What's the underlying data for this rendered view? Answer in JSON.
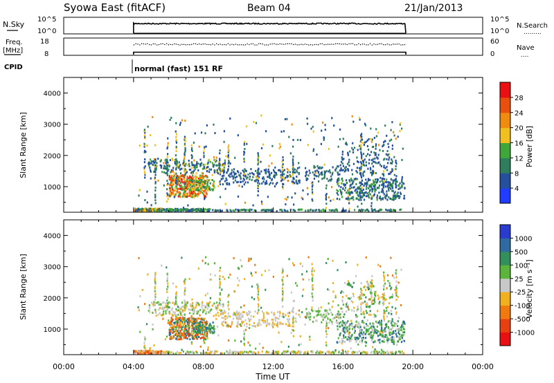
{
  "header": {
    "title": "Syowa East (fitACF)",
    "beam": "Beam 04",
    "date": "21/Jan/2013"
  },
  "top_panels": {
    "nsky": {
      "label": "N.Sky",
      "left_ticks": [
        "10^5",
        "10^0"
      ],
      "right_ticks": [
        "10^5",
        "10^0"
      ],
      "right_label": "N.Search",
      "right_marker": ".........",
      "level_top": 0.62,
      "level_bottom": 0.0
    },
    "freq": {
      "label_line1": "Freq.",
      "label_line2": "[MHz]",
      "left_ticks": [
        "18",
        "8"
      ],
      "right_ticks": [
        "60",
        "0"
      ],
      "right_label": "Nave",
      "right_marker": "....",
      "freq_level": 0.18,
      "nave_level": 0.66
    },
    "cpid": {
      "label": "CPID",
      "text": "normal (fast) 151 RF"
    }
  },
  "chart_data": [
    {
      "type": "heatmap",
      "name": "power",
      "ylabel": "Slant Range [km]",
      "ylim": [
        180,
        4500
      ],
      "yticks": [
        "1000",
        "2000",
        "3000",
        "4000"
      ],
      "ytick_values": [
        1000,
        2000,
        3000,
        4000
      ],
      "xlim": [
        0,
        24
      ],
      "colorbar": {
        "label": "Power [dB]",
        "ticks": [
          "4",
          "8",
          "12",
          "16",
          "20",
          "24",
          "28"
        ],
        "colors": [
          "#1f3cff",
          "#25509e",
          "#2e7d5c",
          "#3fa63a",
          "#f0c020",
          "#f08a10",
          "#e85010",
          "#e81010"
        ]
      },
      "data_window_hours": [
        4.0,
        19.6
      ]
    },
    {
      "type": "heatmap",
      "name": "velocity",
      "ylabel": "Slant Range [km]",
      "ylim": [
        180,
        4500
      ],
      "yticks": [
        "1000",
        "2000",
        "3000",
        "4000"
      ],
      "ytick_values": [
        1000,
        2000,
        3000,
        4000
      ],
      "xlim": [
        0,
        24
      ],
      "colorbar": {
        "label": "Velocity [m s⁻¹]",
        "ticks": [
          "1000",
          "500",
          "100",
          "25",
          "-25",
          "-100",
          "-500",
          "-1000"
        ],
        "colors": [
          "#2a3ccf",
          "#2f6aa0",
          "#34905a",
          "#5ab53a",
          "#c8c8c8",
          "#f0b020",
          "#f07a10",
          "#e84010",
          "#e81010"
        ]
      },
      "data_window_hours": [
        4.0,
        19.6
      ]
    }
  ],
  "xaxis": {
    "label": "Time UT",
    "ticks": [
      "00:00",
      "04:00",
      "08:00",
      "12:00",
      "16:00",
      "20:00",
      "00:00"
    ],
    "tick_hours": [
      0,
      4,
      8,
      12,
      16,
      20,
      24
    ]
  }
}
